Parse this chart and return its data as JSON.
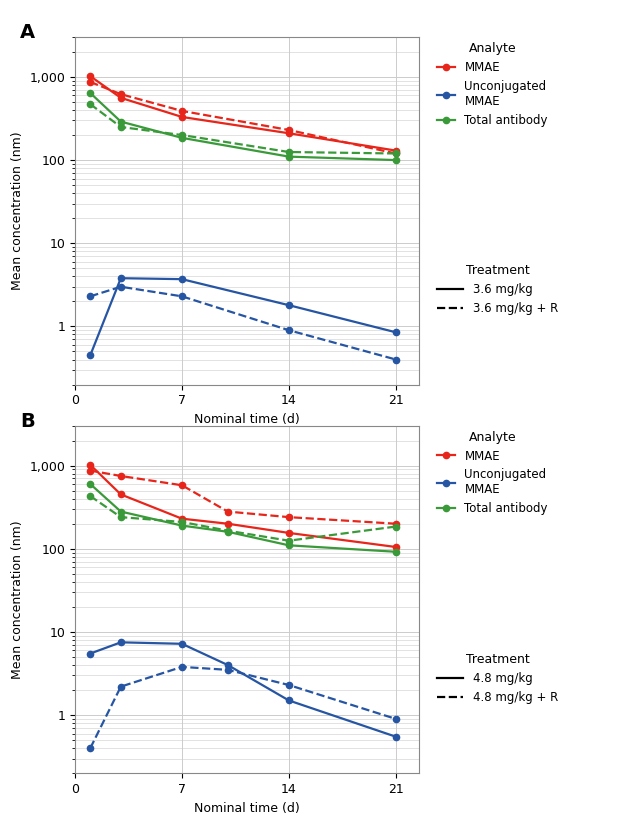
{
  "panel_A": {
    "title": "A",
    "treatment_label_solid": "3.6 mg/kg",
    "treatment_label_dashed": "3.6 mg/kg + R",
    "x": [
      1,
      3,
      7,
      14,
      21
    ],
    "MMAE_solid": [
      1020,
      560,
      330,
      210,
      130
    ],
    "MMAE_dashed": [
      870,
      620,
      390,
      230,
      120
    ],
    "unconj_solid": [
      0.45,
      3.8,
      3.7,
      1.8,
      0.85
    ],
    "unconj_dashed": [
      2.3,
      3.0,
      2.3,
      0.9,
      0.4
    ],
    "total_solid": [
      640,
      290,
      185,
      110,
      100
    ],
    "total_dashed": [
      470,
      250,
      200,
      125,
      120
    ]
  },
  "panel_B": {
    "title": "B",
    "treatment_label_solid": "4.8 mg/kg",
    "treatment_label_dashed": "4.8 mg/kg + R",
    "x": [
      1,
      3,
      7,
      10,
      14,
      21
    ],
    "MMAE_solid": [
      1020,
      450,
      230,
      200,
      155,
      105
    ],
    "MMAE_dashed": [
      870,
      750,
      580,
      280,
      240,
      200
    ],
    "unconj_solid": [
      5.5,
      7.5,
      7.2,
      4.0,
      1.5,
      0.55
    ],
    "unconj_dashed": [
      0.4,
      2.2,
      3.8,
      3.5,
      2.3,
      0.9
    ],
    "total_solid": [
      600,
      280,
      190,
      160,
      110,
      92
    ],
    "total_dashed": [
      430,
      240,
      210,
      165,
      125,
      185
    ]
  },
  "colors": {
    "MMAE": "#e8251a",
    "unconj": "#2655a3",
    "total": "#3a9a3a"
  },
  "ylabel": "Mean concentration (nm)",
  "xlabel": "Nominal time (d)",
  "ylim": [
    0.2,
    3000
  ],
  "yticks": [
    1,
    10,
    100,
    1000
  ],
  "yticklabels": [
    "1",
    "10",
    "100",
    "1,000"
  ],
  "xticks": [
    0,
    7,
    14,
    21
  ],
  "xticklabels": [
    "0",
    "7",
    "14",
    "21"
  ],
  "legend_analyte_title": "Analyte",
  "legend_treatment_title": "Treatment",
  "legend_mmae": "MMAE",
  "legend_unconj": "Unconjugated\nMMAE",
  "legend_total": "Total antibody",
  "marker": "o",
  "markersize": 4.5,
  "linewidth": 1.6,
  "background_color": "#ffffff",
  "grid_color": "#cccccc"
}
